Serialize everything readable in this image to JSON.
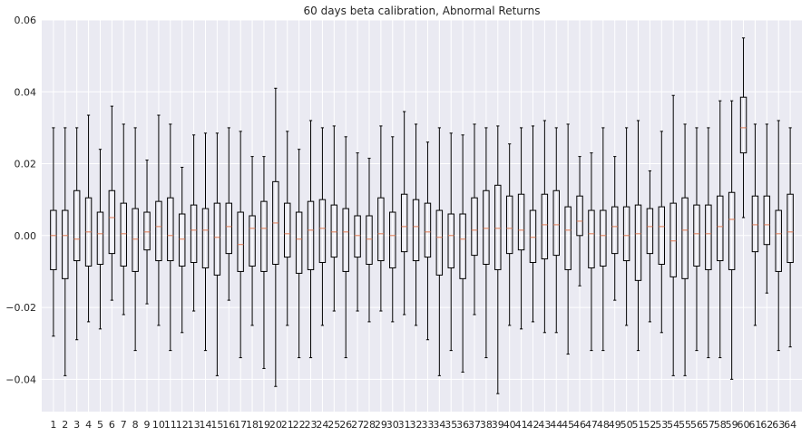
{
  "chart_data": {
    "type": "box",
    "title": "60 days beta calibration, Abnormal Returns",
    "xlabel": "",
    "ylabel": "",
    "ylim": [
      -0.049,
      0.06
    ],
    "yticks": [
      -0.04,
      -0.02,
      0.0,
      0.02,
      0.04,
      0.06
    ],
    "ytick_labels": [
      "−0.04",
      "−0.02",
      "0.00",
      "0.02",
      "0.04",
      "0.06"
    ],
    "grid": true,
    "colors": {
      "background": "#eaeaf2",
      "grid": "#ffffff",
      "box": "#000000",
      "median": "#e07b54"
    },
    "categories": [
      "1",
      "2",
      "3",
      "4",
      "5",
      "6",
      "7",
      "8",
      "9",
      "10",
      "11",
      "12",
      "13",
      "14",
      "15",
      "16",
      "17",
      "18",
      "19",
      "20",
      "21",
      "22",
      "23",
      "24",
      "25",
      "26",
      "27",
      "28",
      "29",
      "30",
      "31",
      "32",
      "33",
      "34",
      "35",
      "36",
      "37",
      "38",
      "39",
      "40",
      "41",
      "42",
      "43",
      "44",
      "45",
      "46",
      "47",
      "48",
      "49",
      "50",
      "51",
      "52",
      "53",
      "54",
      "55",
      "56",
      "57",
      "58",
      "59",
      "60",
      "61",
      "62",
      "63",
      "64"
    ],
    "boxes": [
      {
        "low": -0.028,
        "q1": -0.0095,
        "median": 0.0,
        "q3": 0.007,
        "high": 0.03
      },
      {
        "low": -0.039,
        "q1": -0.012,
        "median": 0.0,
        "q3": 0.007,
        "high": 0.03
      },
      {
        "low": -0.029,
        "q1": -0.007,
        "median": -0.001,
        "q3": 0.0125,
        "high": 0.03
      },
      {
        "low": -0.024,
        "q1": -0.0085,
        "median": 0.001,
        "q3": 0.0105,
        "high": 0.0335
      },
      {
        "low": -0.026,
        "q1": -0.008,
        "median": 0.0005,
        "q3": 0.0065,
        "high": 0.024
      },
      {
        "low": -0.018,
        "q1": -0.005,
        "median": 0.005,
        "q3": 0.0125,
        "high": 0.036
      },
      {
        "low": -0.022,
        "q1": -0.0085,
        "median": 0.0005,
        "q3": 0.009,
        "high": 0.031
      },
      {
        "low": -0.032,
        "q1": -0.01,
        "median": -0.001,
        "q3": 0.0075,
        "high": 0.03
      },
      {
        "low": -0.019,
        "q1": -0.004,
        "median": 0.001,
        "q3": 0.0065,
        "high": 0.021
      },
      {
        "low": -0.025,
        "q1": -0.007,
        "median": 0.0025,
        "q3": 0.0095,
        "high": 0.0335
      },
      {
        "low": -0.032,
        "q1": -0.007,
        "median": 0.0,
        "q3": 0.0105,
        "high": 0.031
      },
      {
        "low": -0.027,
        "q1": -0.0085,
        "median": -0.001,
        "q3": 0.006,
        "high": 0.019
      },
      {
        "low": -0.021,
        "q1": -0.0075,
        "median": 0.0015,
        "q3": 0.0085,
        "high": 0.028
      },
      {
        "low": -0.032,
        "q1": -0.009,
        "median": 0.0015,
        "q3": 0.0075,
        "high": 0.0285
      },
      {
        "low": -0.039,
        "q1": -0.011,
        "median": -0.0005,
        "q3": 0.009,
        "high": 0.0285
      },
      {
        "low": -0.018,
        "q1": -0.005,
        "median": 0.0025,
        "q3": 0.009,
        "high": 0.03
      },
      {
        "low": -0.034,
        "q1": -0.01,
        "median": -0.0025,
        "q3": 0.0065,
        "high": 0.029
      },
      {
        "low": -0.025,
        "q1": -0.0085,
        "median": 0.002,
        "q3": 0.0055,
        "high": 0.022
      },
      {
        "low": -0.037,
        "q1": -0.01,
        "median": 0.002,
        "q3": 0.0095,
        "high": 0.022
      },
      {
        "low": -0.042,
        "q1": -0.008,
        "median": 0.0035,
        "q3": 0.015,
        "high": 0.041
      },
      {
        "low": -0.025,
        "q1": -0.006,
        "median": 0.0005,
        "q3": 0.009,
        "high": 0.029
      },
      {
        "low": -0.034,
        "q1": -0.0105,
        "median": -0.001,
        "q3": 0.0065,
        "high": 0.024
      },
      {
        "low": -0.034,
        "q1": -0.0095,
        "median": 0.0015,
        "q3": 0.0095,
        "high": 0.032
      },
      {
        "low": -0.025,
        "q1": -0.0075,
        "median": 0.002,
        "q3": 0.01,
        "high": 0.03
      },
      {
        "low": -0.021,
        "q1": -0.006,
        "median": 0.001,
        "q3": 0.0085,
        "high": 0.0305
      },
      {
        "low": -0.034,
        "q1": -0.01,
        "median": 0.001,
        "q3": 0.0075,
        "high": 0.0275
      },
      {
        "low": -0.021,
        "q1": -0.006,
        "median": 0.0,
        "q3": 0.0055,
        "high": 0.023
      },
      {
        "low": -0.024,
        "q1": -0.008,
        "median": -0.001,
        "q3": 0.0055,
        "high": 0.0215
      },
      {
        "low": -0.021,
        "q1": -0.007,
        "median": 0.0005,
        "q3": 0.0105,
        "high": 0.0305
      },
      {
        "low": -0.024,
        "q1": -0.009,
        "median": 0.0,
        "q3": 0.0065,
        "high": 0.0275
      },
      {
        "low": -0.022,
        "q1": -0.0045,
        "median": 0.0025,
        "q3": 0.0115,
        "high": 0.0345
      },
      {
        "low": -0.025,
        "q1": -0.007,
        "median": 0.0025,
        "q3": 0.01,
        "high": 0.031
      },
      {
        "low": -0.029,
        "q1": -0.006,
        "median": 0.001,
        "q3": 0.009,
        "high": 0.026
      },
      {
        "low": -0.039,
        "q1": -0.011,
        "median": -0.0005,
        "q3": 0.007,
        "high": 0.03
      },
      {
        "low": -0.032,
        "q1": -0.009,
        "median": 0.0,
        "q3": 0.006,
        "high": 0.0285
      },
      {
        "low": -0.038,
        "q1": -0.012,
        "median": -0.001,
        "q3": 0.006,
        "high": 0.028
      },
      {
        "low": -0.022,
        "q1": -0.0055,
        "median": 0.0015,
        "q3": 0.0105,
        "high": 0.031
      },
      {
        "low": -0.034,
        "q1": -0.008,
        "median": 0.002,
        "q3": 0.0125,
        "high": 0.03
      },
      {
        "low": -0.044,
        "q1": -0.0095,
        "median": 0.002,
        "q3": 0.014,
        "high": 0.0305
      },
      {
        "low": -0.025,
        "q1": -0.005,
        "median": 0.002,
        "q3": 0.011,
        "high": 0.0255
      },
      {
        "low": -0.026,
        "q1": -0.004,
        "median": 0.0015,
        "q3": 0.0115,
        "high": 0.03
      },
      {
        "low": -0.024,
        "q1": -0.0075,
        "median": -0.0005,
        "q3": 0.007,
        "high": 0.0305
      },
      {
        "low": -0.027,
        "q1": -0.0065,
        "median": 0.003,
        "q3": 0.0115,
        "high": 0.032
      },
      {
        "low": -0.027,
        "q1": -0.0055,
        "median": 0.003,
        "q3": 0.0125,
        "high": 0.03
      },
      {
        "low": -0.033,
        "q1": -0.0095,
        "median": 0.0015,
        "q3": 0.008,
        "high": 0.031
      },
      {
        "low": -0.014,
        "q1": 0.0,
        "median": 0.004,
        "q3": 0.011,
        "high": 0.022
      },
      {
        "low": -0.032,
        "q1": -0.009,
        "median": 0.0005,
        "q3": 0.007,
        "high": 0.023
      },
      {
        "low": -0.032,
        "q1": -0.0085,
        "median": 0.0,
        "q3": 0.007,
        "high": 0.03
      },
      {
        "low": -0.018,
        "q1": -0.005,
        "median": 0.0025,
        "q3": 0.008,
        "high": 0.022
      },
      {
        "low": -0.025,
        "q1": -0.007,
        "median": 0.0,
        "q3": 0.008,
        "high": 0.03
      },
      {
        "low": -0.032,
        "q1": -0.0125,
        "median": 0.0005,
        "q3": 0.0085,
        "high": 0.032
      },
      {
        "low": -0.024,
        "q1": -0.005,
        "median": 0.0025,
        "q3": 0.0075,
        "high": 0.018
      },
      {
        "low": -0.027,
        "q1": -0.008,
        "median": 0.0025,
        "q3": 0.008,
        "high": 0.029
      },
      {
        "low": -0.039,
        "q1": -0.0115,
        "median": -0.0015,
        "q3": 0.009,
        "high": 0.039
      },
      {
        "low": -0.039,
        "q1": -0.012,
        "median": 0.0015,
        "q3": 0.0105,
        "high": 0.031
      },
      {
        "low": -0.032,
        "q1": -0.0085,
        "median": 0.0005,
        "q3": 0.0085,
        "high": 0.03
      },
      {
        "low": -0.034,
        "q1": -0.0095,
        "median": 0.0005,
        "q3": 0.0085,
        "high": 0.03
      },
      {
        "low": -0.034,
        "q1": -0.007,
        "median": 0.0025,
        "q3": 0.011,
        "high": 0.0375
      },
      {
        "low": -0.04,
        "q1": -0.0095,
        "median": 0.0045,
        "q3": 0.012,
        "high": 0.0375
      },
      {
        "low": 0.005,
        "q1": 0.023,
        "median": 0.03,
        "q3": 0.0385,
        "high": 0.055
      },
      {
        "low": -0.025,
        "q1": -0.0045,
        "median": 0.003,
        "q3": 0.011,
        "high": 0.031
      },
      {
        "low": -0.016,
        "q1": -0.0025,
        "median": 0.003,
        "q3": 0.011,
        "high": 0.031
      },
      {
        "low": -0.032,
        "q1": -0.01,
        "median": 0.0005,
        "q3": 0.007,
        "high": 0.032
      },
      {
        "low": -0.031,
        "q1": -0.0075,
        "median": 0.001,
        "q3": 0.0115,
        "high": 0.03
      }
    ]
  }
}
